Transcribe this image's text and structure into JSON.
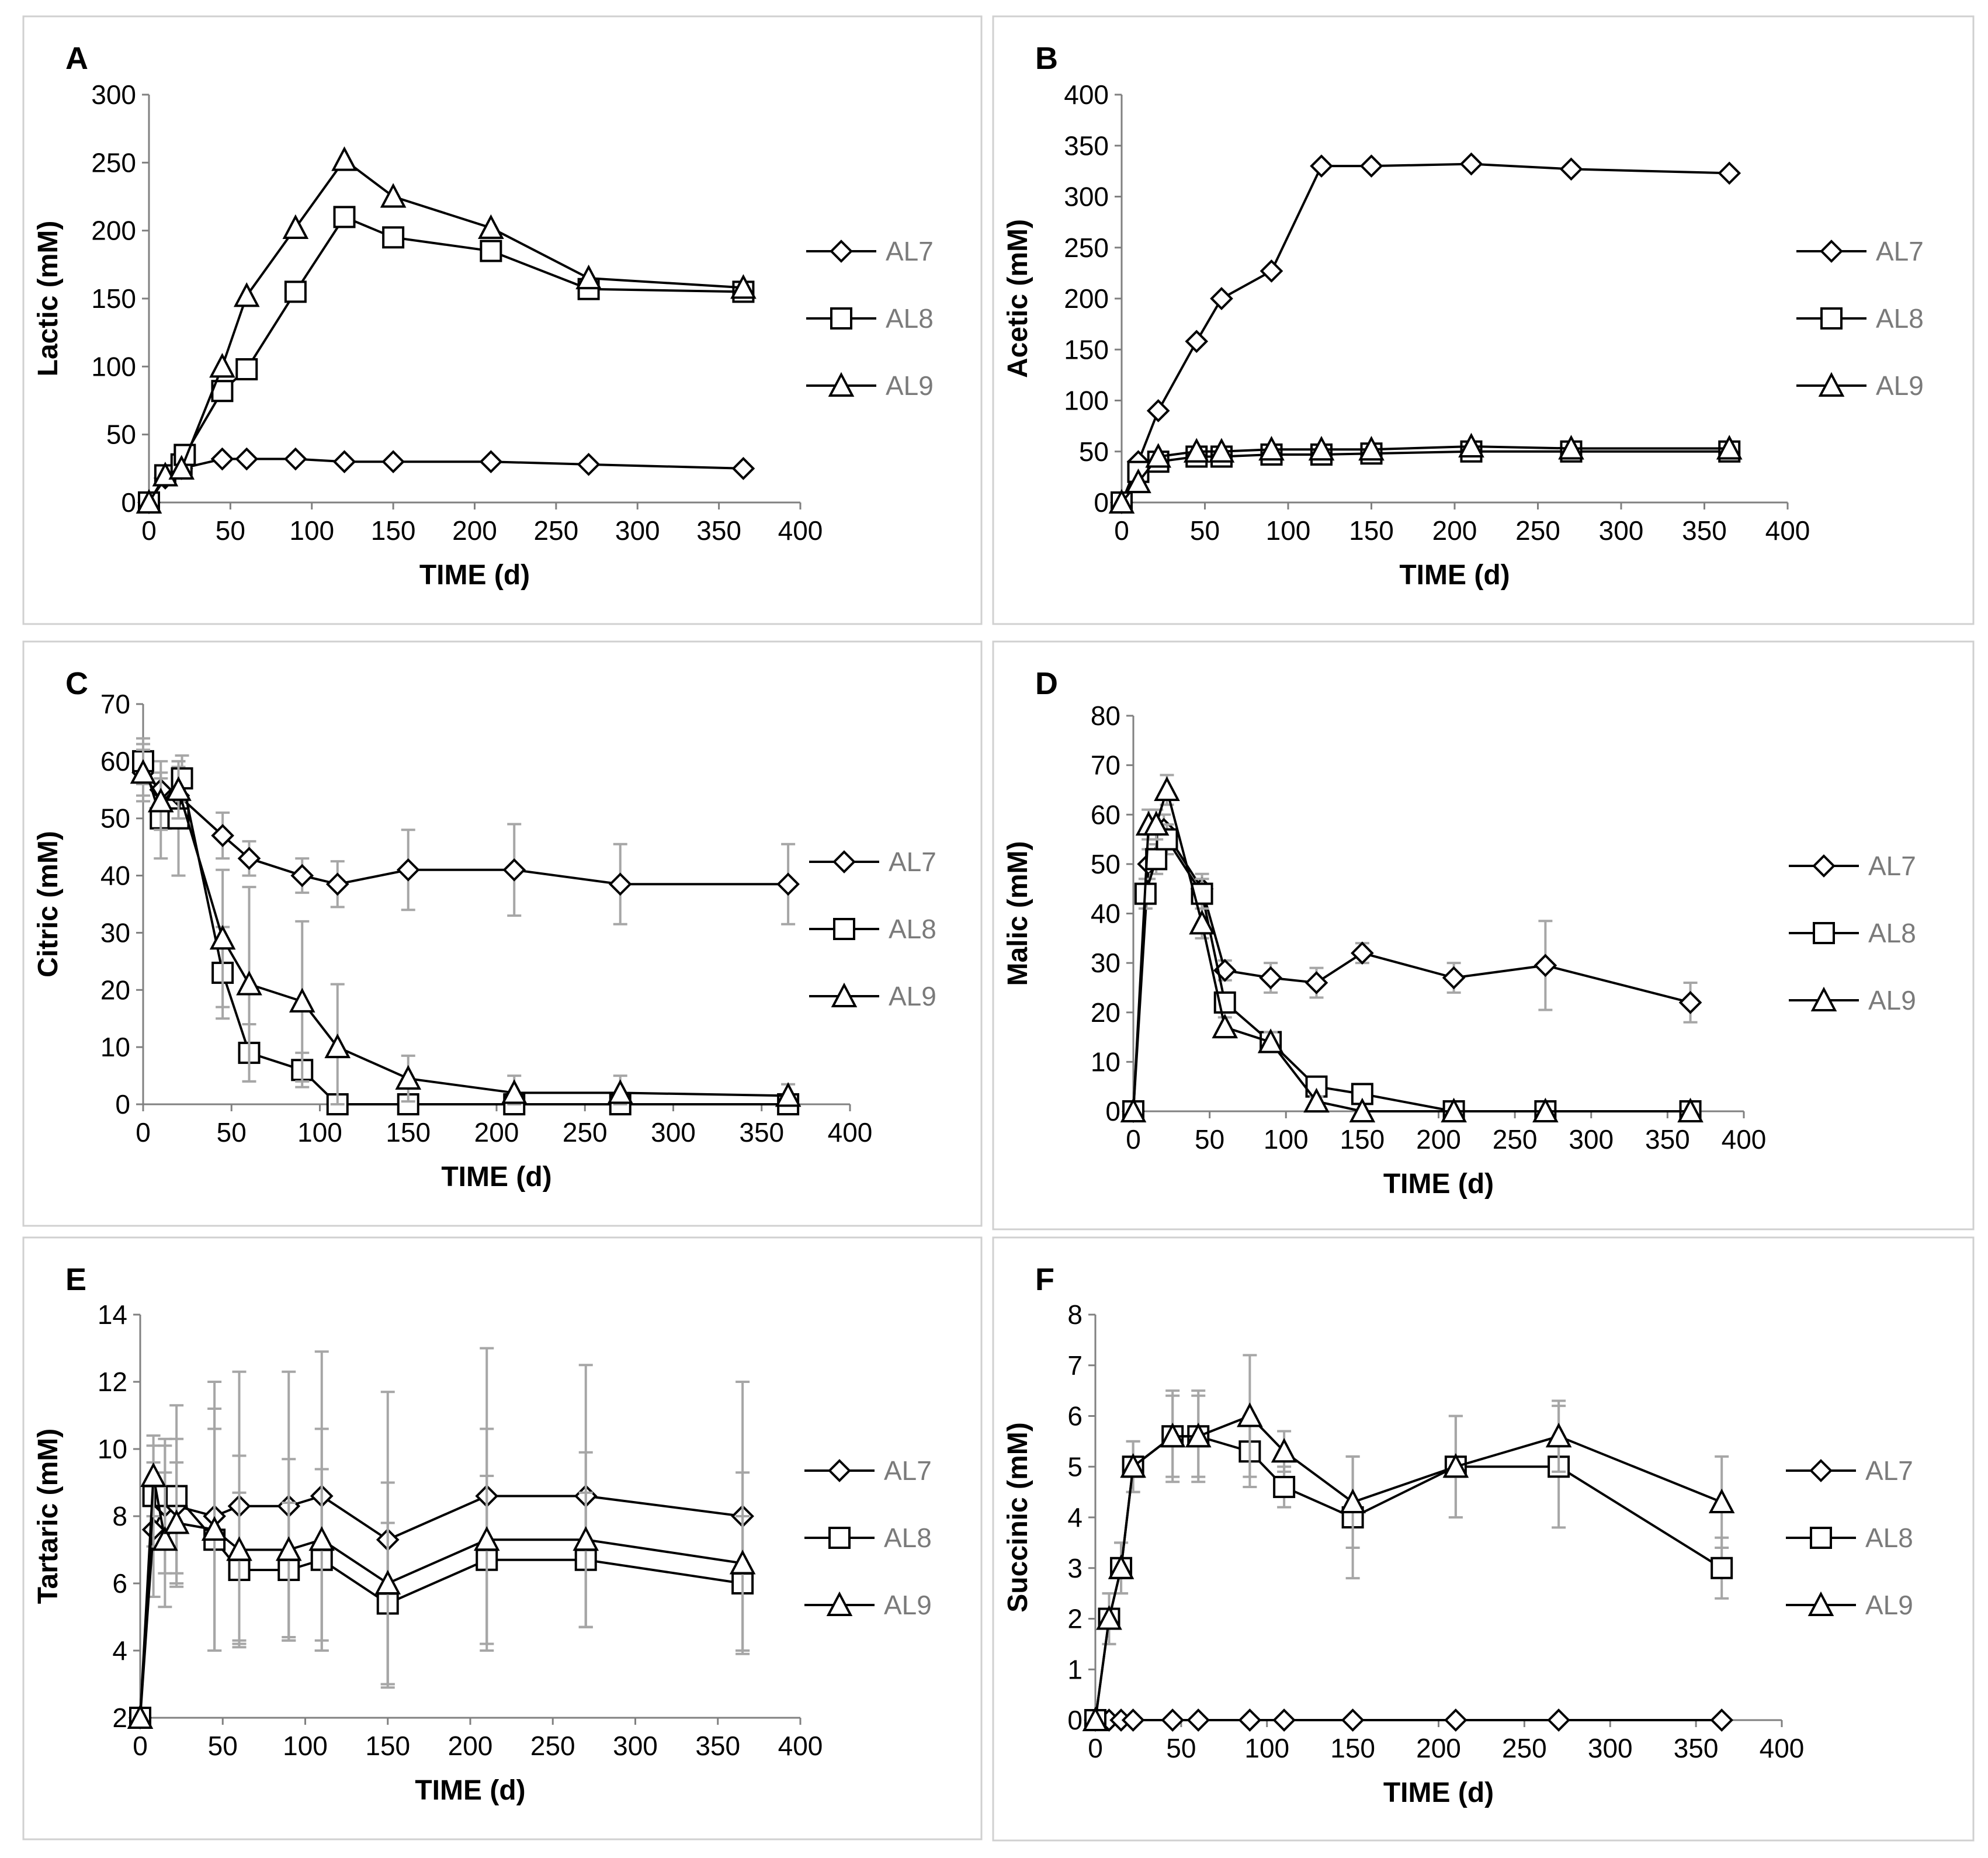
{
  "chart_data": [
    {
      "id": "A",
      "type": "line",
      "panel_label": "A",
      "xlabel": "TIME (d)",
      "ylabel": "Lactic (mM)",
      "xlim": [
        0,
        400
      ],
      "xticks": [
        0,
        50,
        100,
        150,
        200,
        250,
        300,
        350,
        400
      ],
      "ylim": [
        0,
        300
      ],
      "yticks": [
        0,
        50,
        100,
        150,
        200,
        250,
        300
      ],
      "legend": [
        "AL7",
        "AL8",
        "AL9"
      ],
      "series": [
        {
          "name": "AL7",
          "marker": "diamond",
          "x": [
            0,
            10,
            20,
            45,
            60,
            90,
            120,
            150,
            210,
            270,
            365
          ],
          "y": [
            0,
            18,
            25,
            32,
            32,
            32,
            30,
            30,
            30,
            28,
            25
          ]
        },
        {
          "name": "AL8",
          "marker": "square",
          "x": [
            0,
            10,
            20,
            22,
            45,
            60,
            90,
            120,
            150,
            210,
            270,
            365
          ],
          "y": [
            0,
            20,
            28,
            35,
            82,
            98,
            155,
            210,
            195,
            185,
            157,
            155
          ]
        },
        {
          "name": "AL9",
          "marker": "triangle",
          "x": [
            0,
            10,
            20,
            45,
            60,
            90,
            120,
            150,
            210,
            270,
            365
          ],
          "y": [
            0,
            20,
            25,
            100,
            152,
            202,
            252,
            225,
            202,
            165,
            158
          ]
        }
      ]
    },
    {
      "id": "B",
      "type": "line",
      "panel_label": "B",
      "xlabel": "TIME (d)",
      "ylabel": "Acetic (mM)",
      "xlim": [
        0,
        400
      ],
      "xticks": [
        0,
        50,
        100,
        150,
        200,
        250,
        300,
        350,
        400
      ],
      "ylim": [
        0,
        400
      ],
      "yticks": [
        0,
        50,
        100,
        150,
        200,
        250,
        300,
        350,
        400
      ],
      "legend": [
        "AL7",
        "AL8",
        "AL9"
      ],
      "series": [
        {
          "name": "AL7",
          "marker": "diamond",
          "x": [
            0,
            10,
            22,
            45,
            60,
            90,
            120,
            150,
            210,
            270,
            365
          ],
          "y": [
            0,
            40,
            90,
            158,
            200,
            227,
            330,
            330,
            332,
            327,
            323
          ]
        },
        {
          "name": "AL8",
          "marker": "square",
          "x": [
            0,
            10,
            22,
            45,
            60,
            90,
            120,
            150,
            210,
            270,
            365
          ],
          "y": [
            0,
            30,
            40,
            45,
            45,
            47,
            47,
            48,
            50,
            50,
            50
          ]
        },
        {
          "name": "AL9",
          "marker": "triangle",
          "x": [
            0,
            10,
            22,
            45,
            60,
            90,
            120,
            150,
            210,
            270,
            365
          ],
          "y": [
            0,
            20,
            45,
            50,
            50,
            52,
            52,
            52,
            55,
            53,
            53
          ]
        }
      ]
    },
    {
      "id": "C",
      "type": "line",
      "panel_label": "C",
      "xlabel": "TIME (d)",
      "ylabel": "Citric (mM)",
      "xlim": [
        0,
        400
      ],
      "xticks": [
        0,
        50,
        100,
        150,
        200,
        250,
        300,
        350,
        400
      ],
      "ylim": [
        0,
        70
      ],
      "yticks": [
        0,
        10,
        20,
        30,
        40,
        50,
        60,
        70
      ],
      "legend": [
        "AL7",
        "AL8",
        "AL9"
      ],
      "series": [
        {
          "name": "AL7",
          "marker": "diamond",
          "x": [
            0,
            10,
            20,
            45,
            60,
            90,
            110,
            150,
            210,
            270,
            365
          ],
          "y": [
            58,
            55,
            54,
            47,
            43,
            40,
            38.5,
            41,
            41,
            38.5,
            38.5
          ],
          "err": [
            5,
            5,
            5,
            4,
            3,
            3,
            4,
            7,
            8,
            7,
            7
          ]
        },
        {
          "name": "AL8",
          "marker": "square",
          "x": [
            0,
            10,
            20,
            22,
            45,
            60,
            90,
            110,
            150,
            210,
            270,
            365
          ],
          "y": [
            60,
            50,
            50,
            57,
            23,
            9,
            6,
            0,
            0,
            0,
            0,
            0
          ],
          "err": [
            4,
            7,
            10,
            4,
            8,
            5,
            3,
            0,
            0,
            0,
            0,
            0
          ]
        },
        {
          "name": "AL9",
          "marker": "triangle",
          "x": [
            0,
            10,
            20,
            45,
            60,
            90,
            110,
            150,
            210,
            270,
            365
          ],
          "y": [
            58,
            53,
            55,
            29,
            21,
            18,
            10,
            4.5,
            2,
            2,
            1.5
          ],
          "err": [
            4,
            5,
            5,
            12,
            17,
            14,
            11,
            4,
            3,
            3,
            2
          ]
        }
      ]
    },
    {
      "id": "D",
      "type": "line",
      "panel_label": "D",
      "xlabel": "TIME (d)",
      "ylabel": "Malic (mM)",
      "xlim": [
        0,
        400
      ],
      "xticks": [
        0,
        50,
        100,
        150,
        200,
        250,
        300,
        350,
        400
      ],
      "ylim": [
        0,
        80
      ],
      "yticks": [
        0,
        10,
        20,
        30,
        40,
        50,
        60,
        70,
        80
      ],
      "legend": [
        "AL7",
        "AL8",
        "AL9"
      ],
      "series": [
        {
          "name": "AL7",
          "marker": "diamond",
          "x": [
            0,
            10,
            20,
            45,
            60,
            90,
            120,
            150,
            210,
            270,
            365
          ],
          "y": [
            0,
            50,
            57,
            45,
            28.5,
            27,
            26,
            32,
            27,
            29.5,
            22
          ],
          "err": [
            0,
            3,
            3,
            3,
            2,
            3,
            3,
            2,
            3,
            9,
            4
          ]
        },
        {
          "name": "AL8",
          "marker": "square",
          "x": [
            0,
            8,
            15,
            22,
            45,
            60,
            90,
            120,
            150,
            210,
            270,
            365
          ],
          "y": [
            0,
            44,
            51,
            55,
            44,
            22,
            14,
            5,
            3.5,
            0,
            0,
            0
          ],
          "err": [
            0,
            3,
            3,
            3,
            3,
            2,
            2,
            1,
            1,
            0,
            0,
            0
          ]
        },
        {
          "name": "AL9",
          "marker": "triangle",
          "x": [
            0,
            10,
            15,
            22,
            45,
            60,
            90,
            120,
            150,
            210,
            270,
            365
          ],
          "y": [
            0,
            58,
            58,
            65,
            38,
            17,
            14,
            2,
            0,
            0,
            0,
            0
          ],
          "err": [
            0,
            3,
            3,
            3,
            3,
            2,
            2,
            1,
            0,
            0,
            0,
            0
          ]
        }
      ]
    },
    {
      "id": "E",
      "type": "line",
      "panel_label": "E",
      "xlabel": "TIME (d)",
      "ylabel": "Tartaric (mM)",
      "xlim": [
        0,
        400
      ],
      "xticks": [
        0,
        50,
        100,
        150,
        200,
        250,
        300,
        350,
        400
      ],
      "ylim": [
        2,
        14
      ],
      "yticks": [
        2,
        4,
        6,
        8,
        10,
        12,
        14
      ],
      "legend": [
        "AL7",
        "AL8",
        "AL9"
      ],
      "series": [
        {
          "name": "AL7",
          "marker": "diamond",
          "x": [
            0,
            8,
            15,
            22,
            45,
            60,
            90,
            110,
            150,
            210,
            270,
            365
          ],
          "y": [
            2,
            7.6,
            8.3,
            8.3,
            8,
            8.3,
            8.3,
            8.6,
            7.3,
            8.6,
            8.6,
            8
          ],
          "err": [
            0,
            2,
            2,
            2,
            4,
            4,
            4,
            4.3,
            4.4,
            4.4,
            3.9,
            4
          ]
        },
        {
          "name": "AL8",
          "marker": "square",
          "x": [
            0,
            8,
            15,
            22,
            45,
            60,
            90,
            110,
            150,
            210,
            270,
            365
          ],
          "y": [
            2,
            8.6,
            8.6,
            8.6,
            7.3,
            6.4,
            6.4,
            6.7,
            5.4,
            6.7,
            6.7,
            6
          ],
          "err": [
            0,
            1.5,
            1.5,
            2.7,
            3.3,
            2.3,
            2,
            2.7,
            2.4,
            2.5,
            2,
            2
          ]
        },
        {
          "name": "AL9",
          "marker": "triangle",
          "x": [
            0,
            8,
            15,
            22,
            45,
            60,
            90,
            110,
            150,
            210,
            270,
            365
          ],
          "y": [
            2,
            9.2,
            7.3,
            7.8,
            7.6,
            7,
            7,
            7.3,
            6,
            7.3,
            7.3,
            6.6
          ],
          "err": [
            0,
            1.2,
            2,
            1.8,
            3.6,
            2.8,
            2.7,
            3.3,
            3,
            3.3,
            2.6,
            2.7
          ]
        }
      ]
    },
    {
      "id": "F",
      "type": "line",
      "panel_label": "F",
      "xlabel": "TIME (d)",
      "ylabel": "Succinic (mM)",
      "xlim": [
        0,
        400
      ],
      "xticks": [
        0,
        50,
        100,
        150,
        200,
        250,
        300,
        350,
        400
      ],
      "ylim": [
        0,
        8
      ],
      "yticks": [
        0,
        1,
        2,
        3,
        4,
        5,
        6,
        7,
        8
      ],
      "legend": [
        "AL7",
        "AL8",
        "AL9"
      ],
      "series": [
        {
          "name": "AL7",
          "marker": "diamond",
          "x": [
            0,
            8,
            15,
            22,
            45,
            60,
            90,
            110,
            150,
            210,
            270,
            365
          ],
          "y": [
            0,
            0,
            0,
            0,
            0,
            0,
            0,
            0,
            0,
            0,
            0,
            0
          ]
        },
        {
          "name": "AL8",
          "marker": "square",
          "x": [
            0,
            8,
            15,
            22,
            45,
            60,
            90,
            110,
            150,
            210,
            270,
            365
          ],
          "y": [
            0,
            2,
            3,
            5,
            5.6,
            5.6,
            5.3,
            4.6,
            4,
            5,
            5,
            3
          ],
          "err": [
            0,
            0.5,
            0.5,
            0.5,
            0.8,
            0.8,
            0.7,
            0.4,
            1.2,
            1,
            1.2,
            0.6
          ]
        },
        {
          "name": "AL9",
          "marker": "triangle",
          "x": [
            0,
            8,
            15,
            22,
            45,
            60,
            90,
            110,
            150,
            210,
            270,
            365
          ],
          "y": [
            0,
            2,
            3,
            5,
            5.6,
            5.6,
            6,
            5.3,
            4.3,
            5,
            5.6,
            4.3
          ],
          "err": [
            0,
            0.5,
            0.5,
            0.5,
            0.9,
            0.9,
            1.2,
            0.4,
            0.9,
            1,
            0.7,
            0.9
          ]
        }
      ]
    }
  ]
}
